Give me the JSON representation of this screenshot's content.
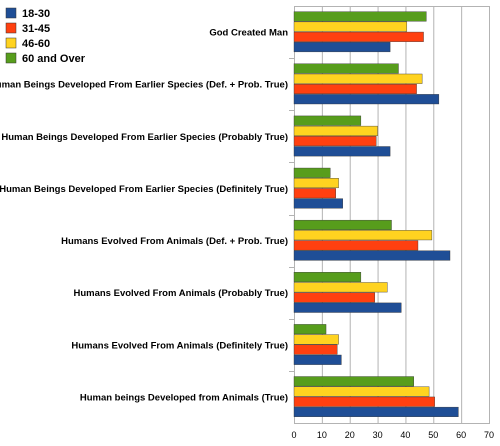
{
  "chart_data": {
    "type": "bar",
    "orientation": "horizontal",
    "categories": [
      "God Created Man",
      "Human Beings Developed From Earlier Species (Def. + Prob. True)",
      "Human Beings Developed From Earlier Species (Probably True)",
      "Human Beings Developed From Earlier Species (Definitely True)",
      "Humans Evolved From Animals (Def. + Prob. True)",
      "Humans Evolved From Animals (Probably True)",
      "Humans Evolved From Animals (Definitely True)",
      "Human beings Developed from Animals (True)"
    ],
    "series": [
      {
        "name": "18-30",
        "color": "#1f4e96",
        "values": [
          34.5,
          52,
          34.5,
          17.5,
          56,
          38.5,
          17,
          59
        ]
      },
      {
        "name": "31-45",
        "color": "#ff4010",
        "values": [
          46.5,
          44,
          29.5,
          15,
          44.5,
          29,
          15.5,
          50.5
        ]
      },
      {
        "name": "46-60",
        "color": "#ffd320",
        "values": [
          40.5,
          46,
          30,
          16,
          49.5,
          33.5,
          16,
          48.5
        ]
      },
      {
        "name": "60 and Over",
        "color": "#579d1c",
        "values": [
          47.5,
          37.5,
          24,
          13,
          35,
          24,
          11.5,
          43
        ]
      }
    ],
    "xlim": [
      0,
      70
    ],
    "xticks": [
      0,
      10,
      20,
      30,
      40,
      50,
      60,
      70
    ],
    "grid": true,
    "legend_position": "top-left",
    "title": "",
    "xlabel": "",
    "ylabel": ""
  }
}
